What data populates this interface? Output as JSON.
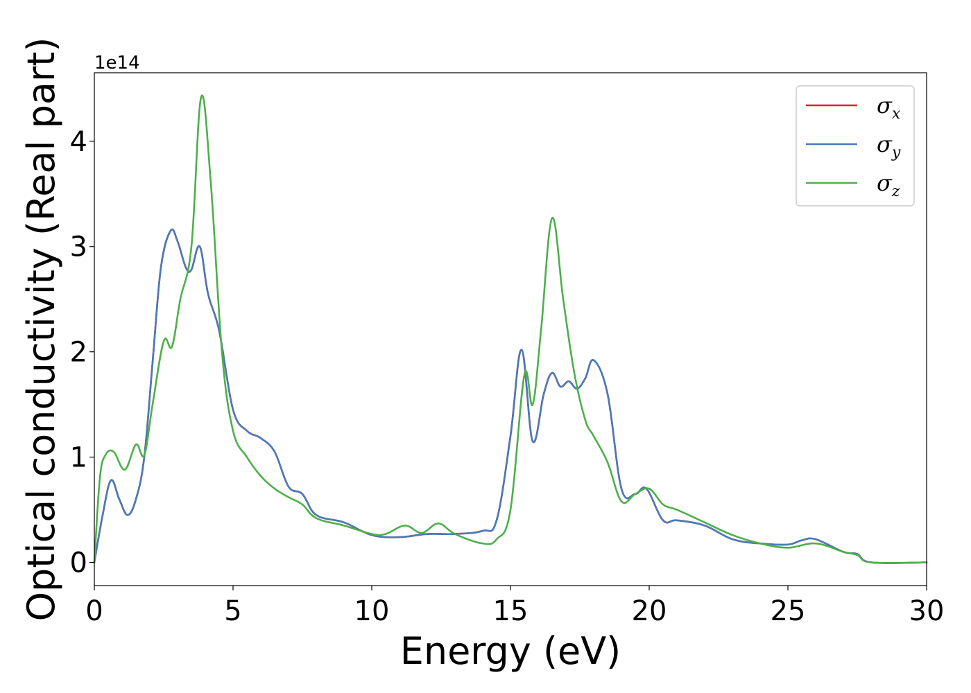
{
  "chart_data": {
    "type": "line",
    "xlabel": "Energy (eV)",
    "ylabel": "Optical conductivity (Real part)",
    "y_offset_label": "1e14",
    "xlim": [
      0,
      30
    ],
    "ylim": [
      -0.22,
      4.65
    ],
    "xticks": [
      0,
      5,
      10,
      15,
      20,
      25,
      30
    ],
    "xtick_labels": [
      "0",
      "5",
      "10",
      "15",
      "20",
      "25",
      "30"
    ],
    "yticks": [
      0,
      1,
      2,
      3,
      4
    ],
    "ytick_labels": [
      "0",
      "1",
      "2",
      "3",
      "4"
    ],
    "grid": false,
    "legend_position": "top-right",
    "series": [
      {
        "name": "σx",
        "symbol": "σ",
        "subscript": "x",
        "color": "#d62728",
        "x": [
          0,
          0.3,
          0.6,
          0.9,
          1.2,
          1.5,
          1.8,
          2.1,
          2.4,
          2.75,
          3.0,
          3.3,
          3.5,
          3.8,
          4.1,
          4.5,
          5.0,
          5.5,
          6.0,
          6.5,
          7.0,
          7.5,
          8.0,
          9.0,
          10.0,
          11.0,
          12.0,
          13.0,
          14.0,
          14.5,
          15.0,
          15.4,
          15.8,
          16.2,
          16.5,
          16.8,
          17.1,
          17.4,
          17.7,
          18.0,
          18.5,
          19.0,
          19.5,
          19.9,
          20.5,
          21.0,
          22.0,
          23.0,
          24.0,
          25.0,
          25.5,
          26.0,
          27.0,
          27.5,
          28.0,
          30.0
        ],
        "y": [
          0.0,
          0.45,
          0.78,
          0.6,
          0.45,
          0.6,
          1.0,
          1.9,
          2.8,
          3.15,
          3.05,
          2.8,
          2.78,
          3.0,
          2.55,
          2.2,
          1.45,
          1.25,
          1.18,
          1.05,
          0.72,
          0.65,
          0.45,
          0.38,
          0.26,
          0.24,
          0.27,
          0.27,
          0.3,
          0.4,
          1.2,
          2.02,
          1.15,
          1.6,
          1.8,
          1.67,
          1.72,
          1.65,
          1.75,
          1.92,
          1.6,
          0.7,
          0.65,
          0.7,
          0.4,
          0.4,
          0.35,
          0.22,
          0.18,
          0.17,
          0.21,
          0.22,
          0.1,
          0.08,
          0.0,
          0.0
        ]
      },
      {
        "name": "σy",
        "symbol": "σ",
        "subscript": "y",
        "color": "#4a7ab8",
        "x": [
          0,
          0.3,
          0.6,
          0.9,
          1.2,
          1.5,
          1.8,
          2.1,
          2.4,
          2.75,
          3.0,
          3.3,
          3.5,
          3.8,
          4.1,
          4.5,
          5.0,
          5.5,
          6.0,
          6.5,
          7.0,
          7.5,
          8.0,
          9.0,
          10.0,
          11.0,
          12.0,
          13.0,
          14.0,
          14.5,
          15.0,
          15.4,
          15.8,
          16.2,
          16.5,
          16.8,
          17.1,
          17.4,
          17.7,
          18.0,
          18.5,
          19.0,
          19.5,
          19.9,
          20.5,
          21.0,
          22.0,
          23.0,
          24.0,
          25.0,
          25.5,
          26.0,
          27.0,
          27.5,
          28.0,
          30.0
        ],
        "y": [
          0.0,
          0.45,
          0.78,
          0.6,
          0.45,
          0.6,
          1.0,
          1.9,
          2.8,
          3.15,
          3.05,
          2.8,
          2.78,
          3.0,
          2.55,
          2.2,
          1.45,
          1.25,
          1.18,
          1.05,
          0.72,
          0.65,
          0.45,
          0.38,
          0.26,
          0.24,
          0.27,
          0.27,
          0.3,
          0.4,
          1.2,
          2.02,
          1.15,
          1.6,
          1.8,
          1.67,
          1.72,
          1.65,
          1.75,
          1.92,
          1.6,
          0.7,
          0.65,
          0.7,
          0.4,
          0.4,
          0.35,
          0.22,
          0.18,
          0.17,
          0.21,
          0.22,
          0.1,
          0.08,
          0.0,
          0.0
        ]
      },
      {
        "name": "σz",
        "symbol": "σ",
        "subscript": "z",
        "color": "#4daf4a",
        "x": [
          0,
          0.2,
          0.4,
          0.7,
          1.1,
          1.5,
          1.8,
          2.1,
          2.5,
          2.8,
          3.1,
          3.5,
          3.85,
          4.2,
          4.6,
          5.0,
          5.5,
          6.0,
          6.5,
          7.0,
          7.5,
          8.0,
          9.0,
          10.0,
          10.5,
          11.2,
          11.8,
          12.4,
          13.0,
          14.0,
          14.5,
          15.0,
          15.5,
          15.8,
          16.1,
          16.5,
          16.9,
          17.3,
          17.7,
          18.0,
          18.5,
          19.0,
          19.5,
          20.0,
          20.5,
          21.0,
          22.0,
          23.0,
          24.0,
          25.0,
          26.0,
          27.0,
          27.5,
          28.0,
          30.0
        ],
        "y": [
          0.0,
          0.8,
          1.02,
          1.05,
          0.88,
          1.12,
          1.02,
          1.5,
          2.1,
          2.05,
          2.5,
          3.0,
          4.42,
          3.6,
          2.0,
          1.25,
          1.0,
          0.82,
          0.7,
          0.62,
          0.55,
          0.42,
          0.35,
          0.27,
          0.27,
          0.35,
          0.28,
          0.37,
          0.27,
          0.18,
          0.22,
          0.5,
          1.78,
          1.5,
          2.2,
          3.27,
          2.5,
          1.8,
          1.35,
          1.2,
          0.95,
          0.58,
          0.65,
          0.7,
          0.55,
          0.5,
          0.38,
          0.26,
          0.18,
          0.14,
          0.18,
          0.1,
          0.07,
          0.0,
          0.0
        ]
      }
    ]
  }
}
